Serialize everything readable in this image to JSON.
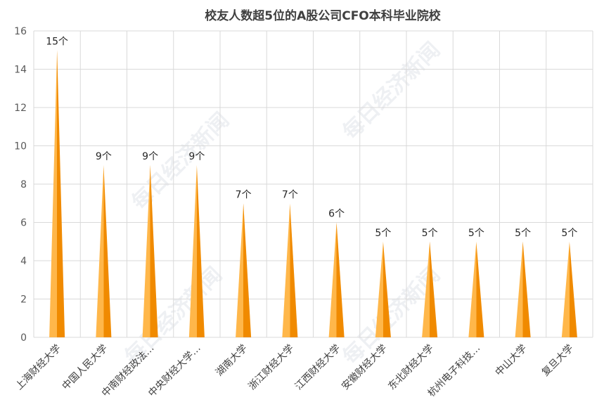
{
  "chart_data": {
    "type": "bar",
    "title": "校友人数超5位的A股公司CFO本科毕业院校",
    "categories": [
      "上海财经大学",
      "中国人民大学",
      "中南财经政法…",
      "中央财经大学…",
      "湖南大学",
      "浙江财经大学",
      "江西财经大学",
      "安徽财经大学",
      "东北财经大学",
      "杭州电子科技…",
      "中山大学",
      "复旦大学"
    ],
    "series": [
      {
        "values": [
          15,
          9,
          9,
          9,
          7,
          7,
          6,
          5,
          5,
          5,
          5,
          5
        ],
        "labels": [
          "15个",
          "9个",
          "9个",
          "9个",
          "7个",
          "7个",
          "6个",
          "5个",
          "5个",
          "5个",
          "5个",
          "5个"
        ]
      }
    ],
    "ylim": [
      0,
      16
    ],
    "yticks": [
      0,
      2,
      4,
      6,
      8,
      10,
      12,
      14,
      16
    ],
    "ytick_labels": [
      "0",
      "2",
      "4",
      "6",
      "8",
      "10",
      "12",
      "14",
      "16"
    ],
    "grid": true,
    "bar_shape": "triangle",
    "colors": {
      "bar_light": "#FFB74A",
      "bar_dark": "#F08A00",
      "grid": "#D9D9D9"
    }
  },
  "watermark": "每日经济新闻"
}
